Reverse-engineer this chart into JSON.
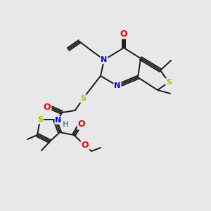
{
  "background_color": "#e8e8ea",
  "bond_color": "#1a1a1a",
  "atom_colors": {
    "S": "#b8b800",
    "N": "#0000ee",
    "O": "#ee0000",
    "C": "#1a1a1a",
    "H": "#4a9a9a"
  },
  "lw": 1.4,
  "fs": 8.0
}
